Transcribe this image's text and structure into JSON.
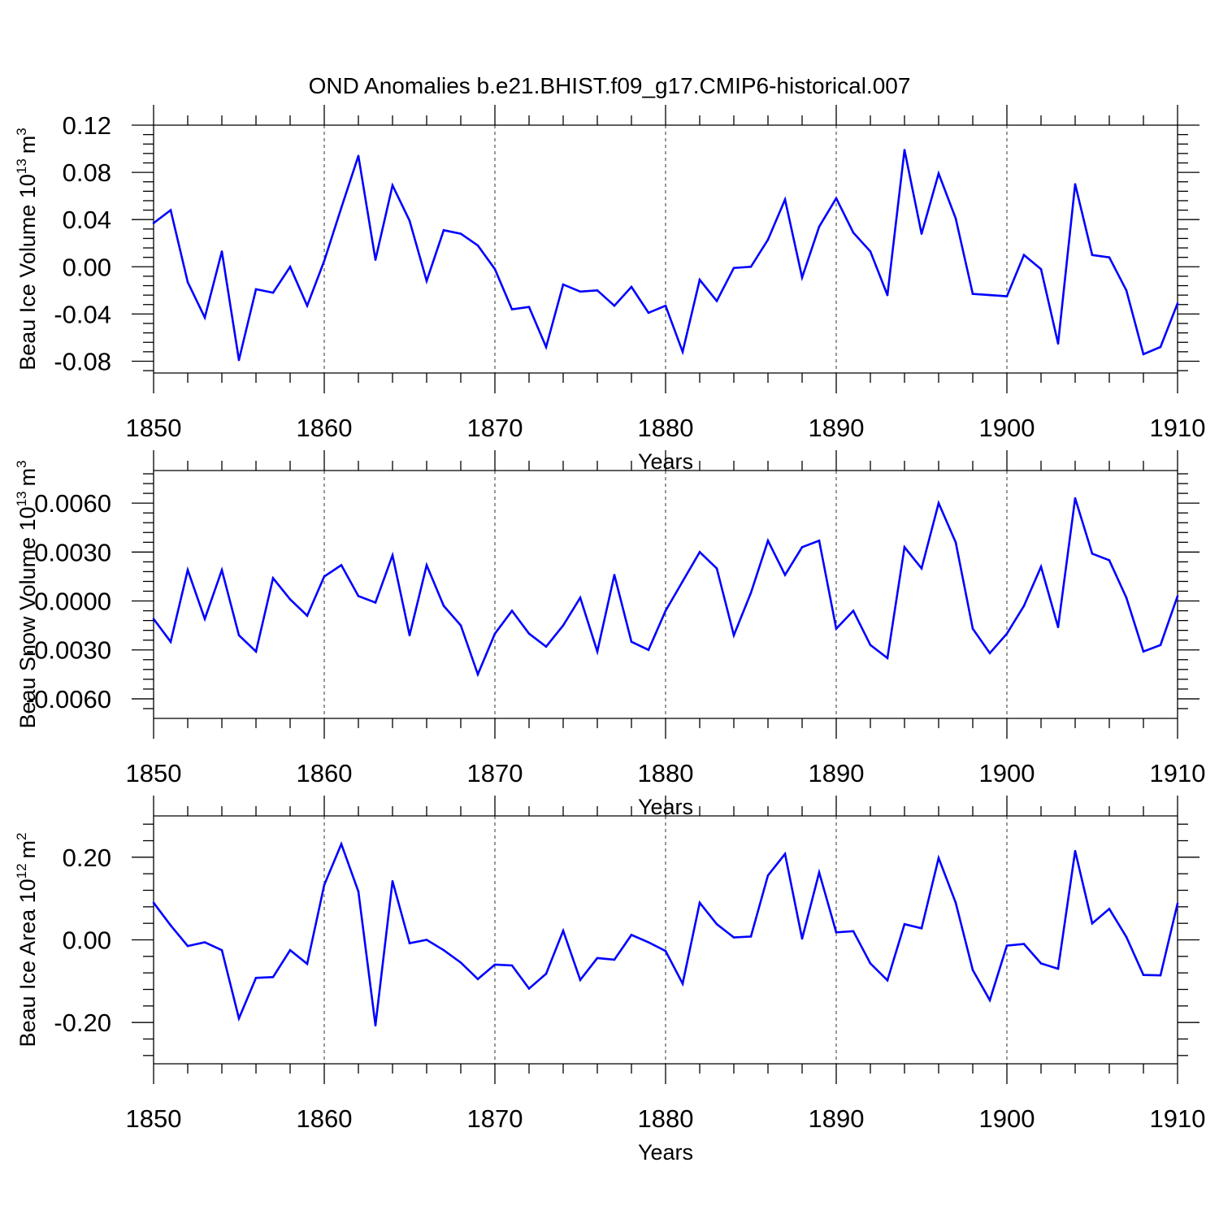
{
  "title": "OND Anomalies b.e21.BHIST.f09_g17.CMIP6-historical.007",
  "line_color": "#0000ff",
  "chart_data": [
    {
      "type": "line",
      "name": "ice-volume",
      "ylabel": "Beau Ice Volume 10",
      "ylabel_sup": "13",
      "ylabel_unit": "m",
      "ylabel_unit_sup": "3",
      "xlabel": "Years",
      "xlim": [
        1850,
        1910
      ],
      "ylim": [
        -0.09,
        0.12
      ],
      "xticks": [
        1850,
        1860,
        1870,
        1880,
        1890,
        1900,
        1910
      ],
      "yticks": [
        -0.08,
        -0.04,
        0.0,
        0.04,
        0.08,
        0.12
      ],
      "ytick_labels": [
        "-0.08",
        "-0.04",
        "0.00",
        "0.04",
        "0.08",
        "0.12"
      ],
      "x": [
        1850,
        1851,
        1852,
        1853,
        1854,
        1855,
        1856,
        1857,
        1858,
        1859,
        1860,
        1861,
        1862,
        1863,
        1864,
        1865,
        1866,
        1867,
        1868,
        1869,
        1870,
        1871,
        1872,
        1873,
        1874,
        1875,
        1876,
        1877,
        1878,
        1879,
        1880,
        1881,
        1882,
        1883,
        1884,
        1885,
        1886,
        1887,
        1888,
        1889,
        1890,
        1891,
        1892,
        1893,
        1894,
        1895,
        1896,
        1897,
        1898,
        1899,
        1900,
        1901,
        1902,
        1903,
        1904,
        1905,
        1906,
        1907,
        1908,
        1909,
        1910
      ],
      "values": [
        0.037,
        0.048,
        -0.013,
        -0.043,
        0.013,
        -0.079,
        -0.019,
        -0.022,
        0.0,
        -0.033,
        0.005,
        0.05,
        0.094,
        0.006,
        0.069,
        0.039,
        -0.012,
        0.031,
        0.028,
        0.018,
        -0.002,
        -0.036,
        -0.034,
        -0.068,
        -0.015,
        -0.021,
        -0.02,
        -0.033,
        -0.017,
        -0.039,
        -0.033,
        -0.072,
        -0.011,
        -0.029,
        -0.001,
        0.0,
        0.023,
        0.057,
        -0.009,
        0.034,
        0.058,
        0.029,
        0.013,
        -0.024,
        0.099,
        0.028,
        0.079,
        0.041,
        -0.023,
        -0.024,
        -0.025,
        0.01,
        -0.002,
        -0.065,
        0.07,
        0.01,
        0.008,
        -0.02,
        -0.074,
        -0.068,
        -0.031
      ]
    },
    {
      "type": "line",
      "name": "snow-volume",
      "ylabel": "Beau Snow Volume 10",
      "ylabel_sup": "13",
      "ylabel_unit": "m",
      "ylabel_unit_sup": "3",
      "xlabel": "Years",
      "xlim": [
        1850,
        1910
      ],
      "ylim": [
        -0.0072,
        0.008
      ],
      "xticks": [
        1850,
        1860,
        1870,
        1880,
        1890,
        1900,
        1910
      ],
      "yticks": [
        -0.006,
        -0.003,
        0.0,
        0.003,
        0.006
      ],
      "ytick_labels": [
        "-0.0060",
        "-0.0030",
        "0.0000",
        "0.0030",
        "0.0060"
      ],
      "x": [
        1850,
        1851,
        1852,
        1853,
        1854,
        1855,
        1856,
        1857,
        1858,
        1859,
        1860,
        1861,
        1862,
        1863,
        1864,
        1865,
        1866,
        1867,
        1868,
        1869,
        1870,
        1871,
        1872,
        1873,
        1874,
        1875,
        1876,
        1877,
        1878,
        1879,
        1880,
        1881,
        1882,
        1883,
        1884,
        1885,
        1886,
        1887,
        1888,
        1889,
        1890,
        1891,
        1892,
        1893,
        1894,
        1895,
        1896,
        1897,
        1898,
        1899,
        1900,
        1901,
        1902,
        1903,
        1904,
        1905,
        1906,
        1907,
        1908,
        1909,
        1910
      ],
      "values": [
        -0.0011,
        -0.0025,
        0.0019,
        -0.0011,
        0.0019,
        -0.0021,
        -0.0031,
        0.0014,
        0.0001,
        -0.0009,
        0.0015,
        0.0022,
        0.0003,
        -0.0001,
        0.0028,
        -0.0021,
        0.0022,
        -0.0003,
        -0.0015,
        -0.0045,
        -0.002,
        -0.0006,
        -0.002,
        -0.0028,
        -0.0015,
        0.0002,
        -0.0031,
        0.0016,
        -0.0025,
        -0.003,
        -0.0006,
        0.0012,
        0.003,
        0.002,
        -0.0021,
        0.0005,
        0.0037,
        0.0016,
        0.0033,
        0.0037,
        -0.0017,
        -0.0006,
        -0.0027,
        -0.0035,
        0.0033,
        0.002,
        0.006,
        0.0036,
        -0.0017,
        -0.0032,
        -0.002,
        -0.0003,
        0.0021,
        -0.0016,
        0.0063,
        0.0029,
        0.0025,
        0.0002,
        -0.0031,
        -0.0027,
        0.0003
      ]
    },
    {
      "type": "line",
      "name": "ice-area",
      "ylabel": "Beau Ice Area 10",
      "ylabel_sup": "12",
      "ylabel_unit": "m",
      "ylabel_unit_sup": "2",
      "xlabel": "Years",
      "xlim": [
        1850,
        1910
      ],
      "ylim": [
        -0.3,
        0.3
      ],
      "xticks": [
        1850,
        1860,
        1870,
        1880,
        1890,
        1900,
        1910
      ],
      "yticks": [
        -0.2,
        0.0,
        0.2
      ],
      "ytick_labels": [
        "-0.20",
        "0.00",
        "0.20"
      ],
      "x": [
        1850,
        1851,
        1852,
        1853,
        1854,
        1855,
        1856,
        1857,
        1858,
        1859,
        1860,
        1861,
        1862,
        1863,
        1864,
        1865,
        1866,
        1867,
        1868,
        1869,
        1870,
        1871,
        1872,
        1873,
        1874,
        1875,
        1876,
        1877,
        1878,
        1879,
        1880,
        1881,
        1882,
        1883,
        1884,
        1885,
        1886,
        1887,
        1888,
        1889,
        1890,
        1891,
        1892,
        1893,
        1894,
        1895,
        1896,
        1897,
        1898,
        1899,
        1900,
        1901,
        1902,
        1903,
        1904,
        1905,
        1906,
        1907,
        1908,
        1909,
        1910
      ],
      "values": [
        0.09,
        0.035,
        -0.015,
        -0.006,
        -0.025,
        -0.19,
        -0.092,
        -0.09,
        -0.025,
        -0.058,
        0.133,
        0.232,
        0.117,
        -0.207,
        0.142,
        -0.008,
        0.0,
        -0.025,
        -0.055,
        -0.095,
        -0.06,
        -0.062,
        -0.118,
        -0.082,
        0.022,
        -0.097,
        -0.044,
        -0.048,
        0.012,
        -0.006,
        -0.027,
        -0.106,
        0.09,
        0.038,
        0.006,
        0.008,
        0.156,
        0.208,
        0.003,
        0.163,
        0.018,
        0.021,
        -0.057,
        -0.098,
        0.038,
        0.028,
        0.198,
        0.09,
        -0.073,
        -0.146,
        -0.014,
        -0.01,
        -0.057,
        -0.07,
        0.215,
        0.04,
        0.075,
        0.007,
        -0.085,
        -0.086,
        0.088
      ]
    }
  ]
}
